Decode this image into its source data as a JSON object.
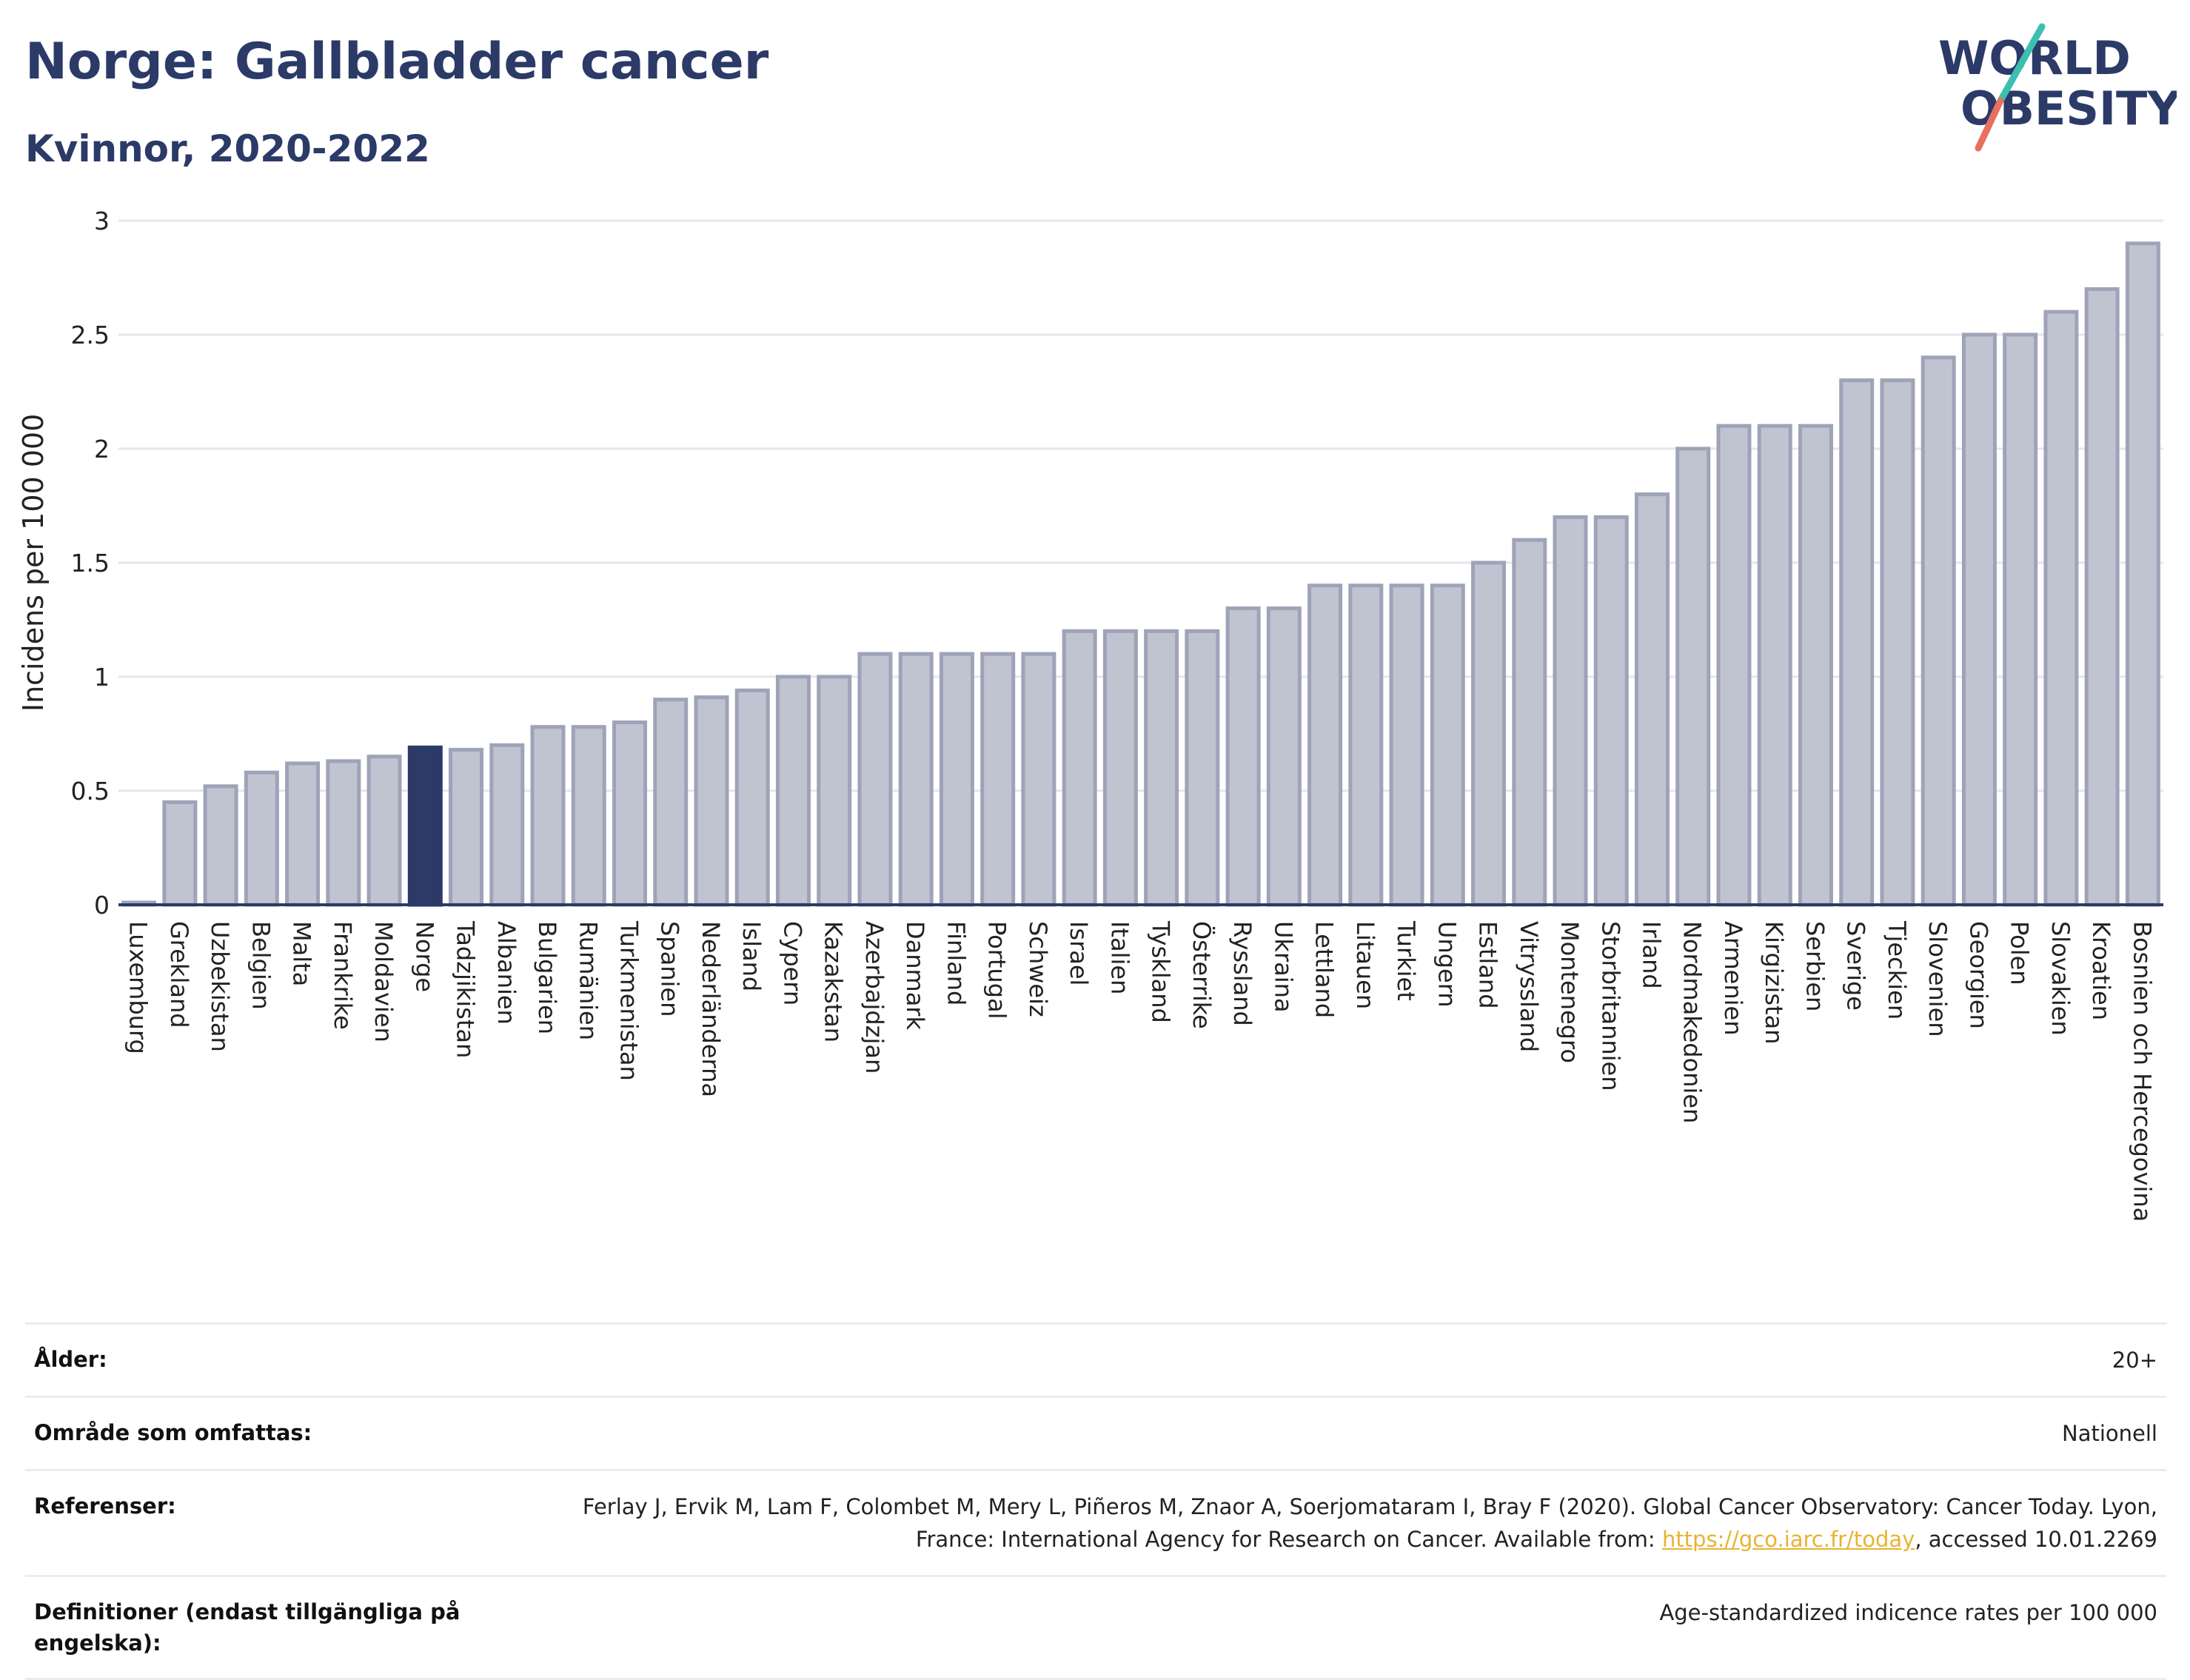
{
  "header": {
    "title": "Norge: Gallbladder cancer",
    "subtitle": "Kvinnor, 2020-2022",
    "logo_line1": "WORLD",
    "logo_line2": "OBESITY"
  },
  "chart_data": {
    "type": "bar",
    "ylabel": "Incidens per 100 000",
    "xlabel": "",
    "ylim": [
      0,
      3
    ],
    "yticks": [
      0,
      0.5,
      1,
      1.5,
      2,
      2.5,
      3
    ],
    "ytick_labels": [
      "0",
      "0.5",
      "1",
      "1.5",
      "2",
      "2.5",
      "3"
    ],
    "highlight": "Norge",
    "colors": {
      "bar": "#c0c3d0",
      "bar_edge": "#9ea3b8",
      "highlight": "#2b3a67",
      "grid": "#e6e6ec"
    },
    "categories": [
      "Luxemburg",
      "Grekland",
      "Uzbekistan",
      "Belgien",
      "Malta",
      "Frankrike",
      "Moldavien",
      "Norge",
      "Tadzjikistan",
      "Albanien",
      "Bulgarien",
      "Rumänien",
      "Turkmenistan",
      "Spanien",
      "Nederländerna",
      "Island",
      "Cypern",
      "Kazakstan",
      "Azerbajdzjan",
      "Danmark",
      "Finland",
      "Portugal",
      "Schweiz",
      "Israel",
      "Italien",
      "Tyskland",
      "Österrike",
      "Ryssland",
      "Ukraina",
      "Lettland",
      "Litauen",
      "Turkiet",
      "Ungern",
      "Estland",
      "Vitryssland",
      "Montenegro",
      "Storbritannien",
      "Irland",
      "Nordmakedonien",
      "Armenien",
      "Kirgizistan",
      "Serbien",
      "Sverige",
      "Tjeckien",
      "Slovenien",
      "Georgien",
      "Polen",
      "Slovakien",
      "Kroatien",
      "Bosnien och Hercegovina"
    ],
    "values": [
      0.01,
      0.45,
      0.52,
      0.58,
      0.62,
      0.63,
      0.65,
      0.69,
      0.68,
      0.7,
      0.78,
      0.78,
      0.8,
      0.9,
      0.91,
      0.94,
      1.0,
      1.0,
      1.1,
      1.1,
      1.1,
      1.1,
      1.1,
      1.2,
      1.2,
      1.2,
      1.2,
      1.3,
      1.3,
      1.4,
      1.4,
      1.4,
      1.4,
      1.5,
      1.6,
      1.7,
      1.7,
      1.8,
      2.0,
      2.1,
      2.1,
      2.1,
      2.3,
      2.3,
      2.4,
      2.5,
      2.5,
      2.6,
      2.7,
      2.9
    ]
  },
  "meta": {
    "age_label": "Ålder:",
    "age_value": "20+",
    "area_label": "Område som omfattas:",
    "area_value": "Nationell",
    "refs_label": "Referenser:",
    "refs_text_1": "Ferlay J, Ervik M, Lam F, Colombet M, Mery L, Piñeros M, Znaor A, Soerjomataram I, Bray F (2020). Global Cancer Observatory: Cancer Today. Lyon, France: International Agency for Research on Cancer. Available from: ",
    "refs_link": "https://gco.iarc.fr/today",
    "refs_text_2": ", accessed 10.01.2269",
    "defs_label": "Definitioner (endast tillgängliga på engelska):",
    "defs_value": "Age-standardized indicence rates per 100 000"
  }
}
